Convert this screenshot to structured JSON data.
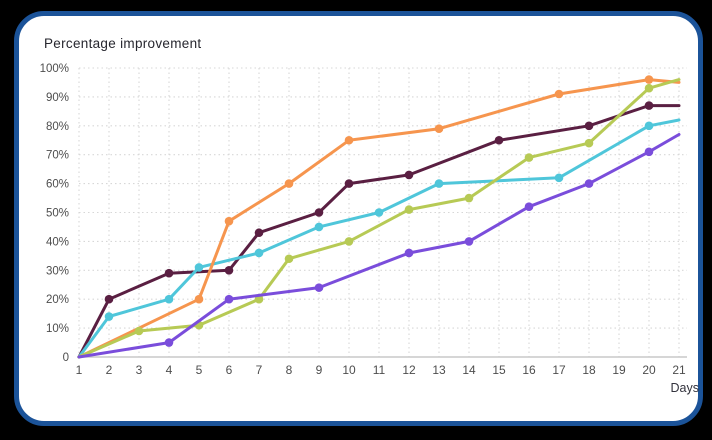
{
  "chart_data": {
    "type": "line",
    "title": "Percentage improvement",
    "xlabel": "Days",
    "ylabel": "",
    "xlim": [
      1,
      21
    ],
    "ylim": [
      0,
      100
    ],
    "grid": "dotted",
    "legend": "none",
    "x_ticks": [
      1,
      2,
      3,
      4,
      5,
      6,
      7,
      8,
      9,
      10,
      11,
      12,
      13,
      14,
      15,
      16,
      17,
      18,
      19,
      20,
      21
    ],
    "y_ticks": [
      {
        "value": 100,
        "label": "100%"
      },
      {
        "value": 90,
        "label": "90%"
      },
      {
        "value": 80,
        "label": "80%"
      },
      {
        "value": 70,
        "label": "70%"
      },
      {
        "value": 60,
        "label": "60%"
      },
      {
        "value": 50,
        "label": "50%"
      },
      {
        "value": 40,
        "label": "40%"
      },
      {
        "value": 30,
        "label": "30%"
      },
      {
        "value": 20,
        "label": "20%"
      },
      {
        "value": 10,
        "label": "10%"
      },
      {
        "value": 0,
        "label": "0"
      }
    ],
    "series": [
      {
        "name": "plum",
        "color": "#5a1f42",
        "points": [
          {
            "day": 1,
            "value": 0,
            "marker": false
          },
          {
            "day": 2,
            "value": 20,
            "marker": true
          },
          {
            "day": 4,
            "value": 29,
            "marker": true
          },
          {
            "day": 6,
            "value": 30,
            "marker": true
          },
          {
            "day": 7,
            "value": 43,
            "marker": true
          },
          {
            "day": 9,
            "value": 50,
            "marker": true
          },
          {
            "day": 10,
            "value": 60,
            "marker": true
          },
          {
            "day": 12,
            "value": 63,
            "marker": true
          },
          {
            "day": 15,
            "value": 75,
            "marker": true
          },
          {
            "day": 18,
            "value": 80,
            "marker": true
          },
          {
            "day": 20,
            "value": 87,
            "marker": true
          },
          {
            "day": 21,
            "value": 87,
            "marker": false
          }
        ]
      },
      {
        "name": "cyan",
        "color": "#4fc6da",
        "points": [
          {
            "day": 1,
            "value": 0,
            "marker": false
          },
          {
            "day": 2,
            "value": 14,
            "marker": true
          },
          {
            "day": 4,
            "value": 20,
            "marker": true
          },
          {
            "day": 5,
            "value": 31,
            "marker": true
          },
          {
            "day": 7,
            "value": 36,
            "marker": true
          },
          {
            "day": 9,
            "value": 45,
            "marker": true
          },
          {
            "day": 11,
            "value": 50,
            "marker": true
          },
          {
            "day": 13,
            "value": 60,
            "marker": true
          },
          {
            "day": 17,
            "value": 62,
            "marker": true
          },
          {
            "day": 20,
            "value": 80,
            "marker": true
          },
          {
            "day": 21,
            "value": 82,
            "marker": false
          }
        ]
      },
      {
        "name": "orange",
        "color": "#f6954e",
        "points": [
          {
            "day": 1,
            "value": 0,
            "marker": false
          },
          {
            "day": 5,
            "value": 20,
            "marker": true
          },
          {
            "day": 6,
            "value": 47,
            "marker": true
          },
          {
            "day": 8,
            "value": 60,
            "marker": true
          },
          {
            "day": 10,
            "value": 75,
            "marker": true
          },
          {
            "day": 13,
            "value": 79,
            "marker": true
          },
          {
            "day": 17,
            "value": 91,
            "marker": true
          },
          {
            "day": 20,
            "value": 96,
            "marker": true
          },
          {
            "day": 21,
            "value": 95,
            "marker": false
          }
        ]
      },
      {
        "name": "lime",
        "color": "#b7ca55",
        "points": [
          {
            "day": 1,
            "value": 0,
            "marker": false
          },
          {
            "day": 3,
            "value": 9,
            "marker": true
          },
          {
            "day": 5,
            "value": 11,
            "marker": true
          },
          {
            "day": 7,
            "value": 20,
            "marker": true
          },
          {
            "day": 8,
            "value": 34,
            "marker": true
          },
          {
            "day": 10,
            "value": 40,
            "marker": true
          },
          {
            "day": 12,
            "value": 51,
            "marker": true
          },
          {
            "day": 14,
            "value": 55,
            "marker": true
          },
          {
            "day": 16,
            "value": 69,
            "marker": true
          },
          {
            "day": 18,
            "value": 74,
            "marker": true
          },
          {
            "day": 20,
            "value": 93,
            "marker": true
          },
          {
            "day": 21,
            "value": 96,
            "marker": false
          }
        ]
      },
      {
        "name": "violet",
        "color": "#7a4ddb",
        "points": [
          {
            "day": 1,
            "value": 0,
            "marker": false
          },
          {
            "day": 4,
            "value": 5,
            "marker": true
          },
          {
            "day": 6,
            "value": 20,
            "marker": true
          },
          {
            "day": 9,
            "value": 24,
            "marker": true
          },
          {
            "day": 12,
            "value": 36,
            "marker": true
          },
          {
            "day": 14,
            "value": 40,
            "marker": true
          },
          {
            "day": 16,
            "value": 52,
            "marker": true
          },
          {
            "day": 18,
            "value": 60,
            "marker": true
          },
          {
            "day": 20,
            "value": 71,
            "marker": true
          },
          {
            "day": 21,
            "value": 77,
            "marker": false
          }
        ]
      }
    ],
    "style": {
      "card_border_color": "#1b5399",
      "background_outside": "#000000",
      "card_background": "#ffffff",
      "gridline_color": "#d7d7d7",
      "axis_line_color": "#c9c9c9",
      "tick_label_color": "#4d4d4d",
      "title_color": "#26262e"
    }
  }
}
